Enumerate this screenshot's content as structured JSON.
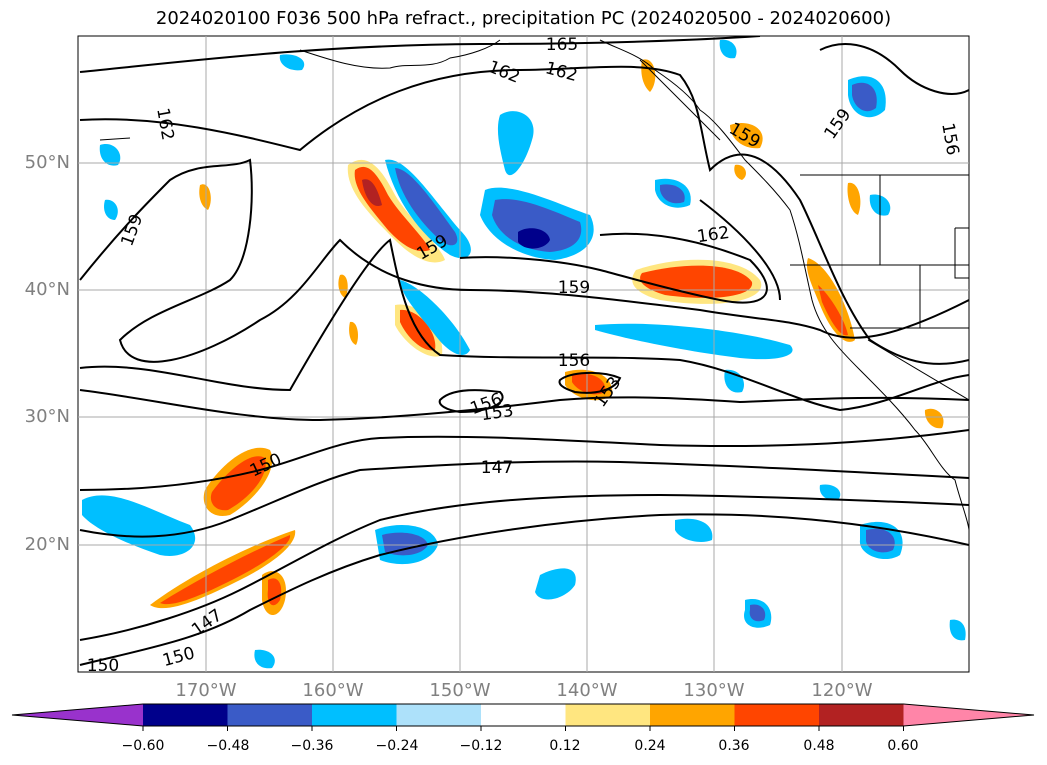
{
  "title": "2024020100 F036 500 hPa refract., precipitation PC (2024020500 - 2024020600)",
  "lat_labels": [
    "50°N",
    "40°N",
    "30°N",
    "20°N"
  ],
  "lon_labels": [
    "170°W",
    "160°W",
    "150°W",
    "140°W",
    "130°W",
    "120°W"
  ],
  "contour_labels": [
    "165",
    "162",
    "162",
    "162",
    "162",
    "159",
    "159",
    "159",
    "159",
    "159",
    "156",
    "156",
    "156",
    "153",
    "153",
    "150",
    "147",
    "147",
    "150",
    "150"
  ],
  "colorbar": {
    "ticks": [
      "−0.60",
      "−0.48",
      "−0.36",
      "−0.24",
      "−0.12",
      "0.12",
      "0.24",
      "0.36",
      "0.48",
      "0.60"
    ],
    "colors": [
      "#9932CC",
      "#00008B",
      "#3A5BC7",
      "#00BFFF",
      "#ADE1FA",
      "#FFFFFF",
      "#FFE680",
      "#FFA500",
      "#FF4500",
      "#B22222",
      "#FF85A8"
    ]
  },
  "colors": {
    "grid": "#A9A9A9",
    "tick_text": "#808080",
    "contour": "#000000"
  }
}
